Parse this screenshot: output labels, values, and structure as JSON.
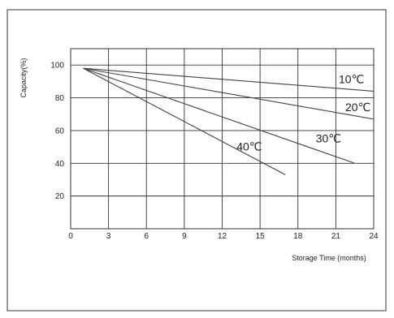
{
  "chart_data": {
    "type": "line",
    "title": "",
    "xlabel": "Storage Time (months)",
    "ylabel": "Capacity(%)",
    "xlim": [
      0,
      24
    ],
    "ylim": [
      0,
      110
    ],
    "x_ticks": [
      "0",
      "3",
      "6",
      "9",
      "12",
      "15",
      "18",
      "21",
      "24"
    ],
    "y_ticks": [
      "20",
      "40",
      "60",
      "80",
      "100"
    ],
    "grid": true,
    "series": [
      {
        "name": "10℃",
        "x": [
          1,
          24
        ],
        "y": [
          98,
          84
        ]
      },
      {
        "name": "20℃",
        "x": [
          1,
          24
        ],
        "y": [
          98,
          67
        ]
      },
      {
        "name": "30℃",
        "x": [
          1,
          22.5
        ],
        "y": [
          98,
          40
        ]
      },
      {
        "name": "40℃",
        "x": [
          1,
          17
        ],
        "y": [
          98,
          33
        ]
      }
    ]
  },
  "colors": {
    "line": "#444444",
    "grid": "#333333",
    "frame": "#555555"
  }
}
